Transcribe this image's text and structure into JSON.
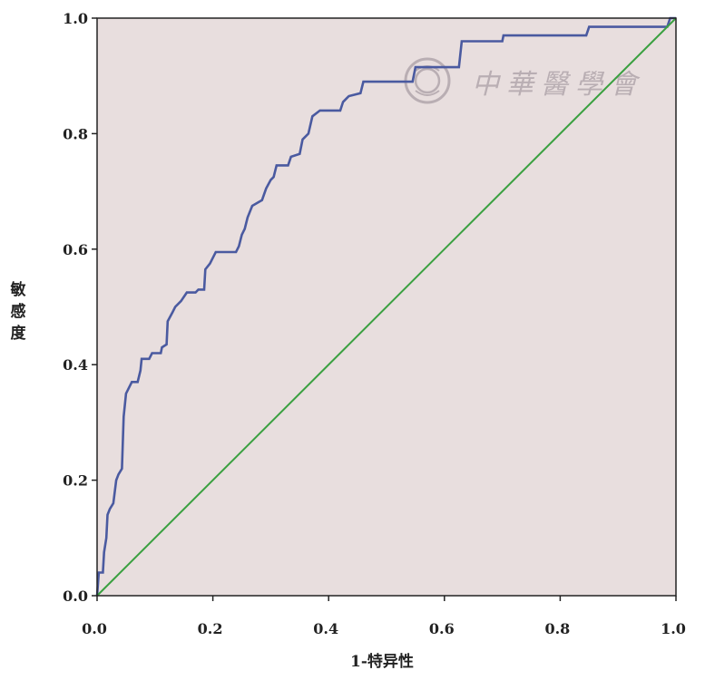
{
  "chart_data": {
    "type": "line",
    "xlabel": "1-特异性",
    "ylabel": "敏感度",
    "xlim": [
      0,
      1
    ],
    "ylim": [
      0,
      1
    ],
    "x_ticks": [
      "0.0",
      "0.2",
      "0.4",
      "0.6",
      "0.8",
      "1.0"
    ],
    "y_ticks": [
      "0.0",
      "0.2",
      "0.4",
      "0.6",
      "0.8",
      "1.0"
    ],
    "grid": false,
    "background_color": "#e8dede",
    "series": [
      {
        "color": "#4a5aa0",
        "points": [
          [
            0.0,
            0.0
          ],
          [
            0.003,
            0.04
          ],
          [
            0.01,
            0.04
          ],
          [
            0.012,
            0.075
          ],
          [
            0.016,
            0.1
          ],
          [
            0.018,
            0.14
          ],
          [
            0.022,
            0.15
          ],
          [
            0.028,
            0.16
          ],
          [
            0.033,
            0.2
          ],
          [
            0.037,
            0.21
          ],
          [
            0.043,
            0.22
          ],
          [
            0.046,
            0.31
          ],
          [
            0.05,
            0.35
          ],
          [
            0.055,
            0.36
          ],
          [
            0.06,
            0.37
          ],
          [
            0.07,
            0.37
          ],
          [
            0.075,
            0.39
          ],
          [
            0.077,
            0.41
          ],
          [
            0.09,
            0.41
          ],
          [
            0.095,
            0.42
          ],
          [
            0.11,
            0.42
          ],
          [
            0.112,
            0.43
          ],
          [
            0.12,
            0.435
          ],
          [
            0.122,
            0.475
          ],
          [
            0.13,
            0.49
          ],
          [
            0.135,
            0.5
          ],
          [
            0.145,
            0.51
          ],
          [
            0.155,
            0.525
          ],
          [
            0.17,
            0.525
          ],
          [
            0.175,
            0.53
          ],
          [
            0.185,
            0.53
          ],
          [
            0.187,
            0.565
          ],
          [
            0.195,
            0.575
          ],
          [
            0.205,
            0.595
          ],
          [
            0.24,
            0.595
          ],
          [
            0.245,
            0.605
          ],
          [
            0.25,
            0.625
          ],
          [
            0.255,
            0.635
          ],
          [
            0.26,
            0.655
          ],
          [
            0.268,
            0.675
          ],
          [
            0.285,
            0.685
          ],
          [
            0.292,
            0.705
          ],
          [
            0.3,
            0.72
          ],
          [
            0.305,
            0.725
          ],
          [
            0.31,
            0.745
          ],
          [
            0.33,
            0.745
          ],
          [
            0.335,
            0.76
          ],
          [
            0.35,
            0.765
          ],
          [
            0.355,
            0.79
          ],
          [
            0.365,
            0.8
          ],
          [
            0.372,
            0.83
          ],
          [
            0.385,
            0.84
          ],
          [
            0.42,
            0.84
          ],
          [
            0.425,
            0.855
          ],
          [
            0.435,
            0.865
          ],
          [
            0.455,
            0.87
          ],
          [
            0.46,
            0.89
          ],
          [
            0.545,
            0.89
          ],
          [
            0.55,
            0.915
          ],
          [
            0.625,
            0.915
          ],
          [
            0.63,
            0.96
          ],
          [
            0.7,
            0.96
          ],
          [
            0.702,
            0.97
          ],
          [
            0.845,
            0.97
          ],
          [
            0.85,
            0.985
          ],
          [
            0.985,
            0.985
          ],
          [
            0.99,
            1.0
          ],
          [
            1.0,
            1.0
          ]
        ]
      },
      {
        "color": "#3aa040",
        "points": [
          [
            0,
            0
          ],
          [
            1,
            1
          ]
        ]
      }
    ]
  },
  "watermark": {
    "text": "中華醫學會",
    "color": "#b9aeb3"
  }
}
